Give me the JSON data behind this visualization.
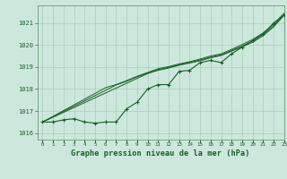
{
  "title": "Graphe pression niveau de la mer (hPa)",
  "background_color": "#cce8dc",
  "plot_bg_color": "#cce8dc",
  "grid_color": "#aaccbb",
  "line_color": "#1a5e2a",
  "xlim": [
    -0.5,
    23
  ],
  "ylim": [
    1015.7,
    1021.8
  ],
  "yticks": [
    1016,
    1017,
    1018,
    1019,
    1020,
    1021
  ],
  "xticks": [
    0,
    1,
    2,
    3,
    4,
    5,
    6,
    7,
    8,
    9,
    10,
    11,
    12,
    13,
    14,
    15,
    16,
    17,
    18,
    19,
    20,
    21,
    22,
    23
  ],
  "series_main": [
    1016.5,
    1016.5,
    1016.6,
    1016.65,
    1016.5,
    1016.45,
    1016.5,
    1016.5,
    1017.1,
    1017.4,
    1018.0,
    1018.2,
    1018.2,
    1018.8,
    1018.85,
    1019.2,
    1019.3,
    1019.2,
    1019.6,
    1019.9,
    1020.2,
    1020.5,
    1021.0,
    1021.35
  ],
  "series_linear1": [
    1016.5,
    1016.72,
    1016.94,
    1017.16,
    1017.38,
    1017.6,
    1017.82,
    1018.04,
    1018.26,
    1018.48,
    1018.7,
    1018.85,
    1018.95,
    1019.08,
    1019.18,
    1019.28,
    1019.42,
    1019.52,
    1019.72,
    1019.92,
    1020.12,
    1020.42,
    1020.82,
    1021.35
  ],
  "series_linear2": [
    1016.5,
    1016.74,
    1016.98,
    1017.22,
    1017.46,
    1017.7,
    1017.94,
    1018.18,
    1018.35,
    1018.55,
    1018.72,
    1018.88,
    1018.98,
    1019.1,
    1019.2,
    1019.32,
    1019.45,
    1019.55,
    1019.75,
    1019.95,
    1020.18,
    1020.48,
    1020.88,
    1021.38
  ],
  "series_linear3": [
    1016.5,
    1016.76,
    1017.02,
    1017.28,
    1017.54,
    1017.8,
    1018.06,
    1018.2,
    1018.38,
    1018.58,
    1018.75,
    1018.92,
    1019.02,
    1019.14,
    1019.24,
    1019.36,
    1019.5,
    1019.6,
    1019.8,
    1020.02,
    1020.25,
    1020.55,
    1020.95,
    1021.45
  ]
}
